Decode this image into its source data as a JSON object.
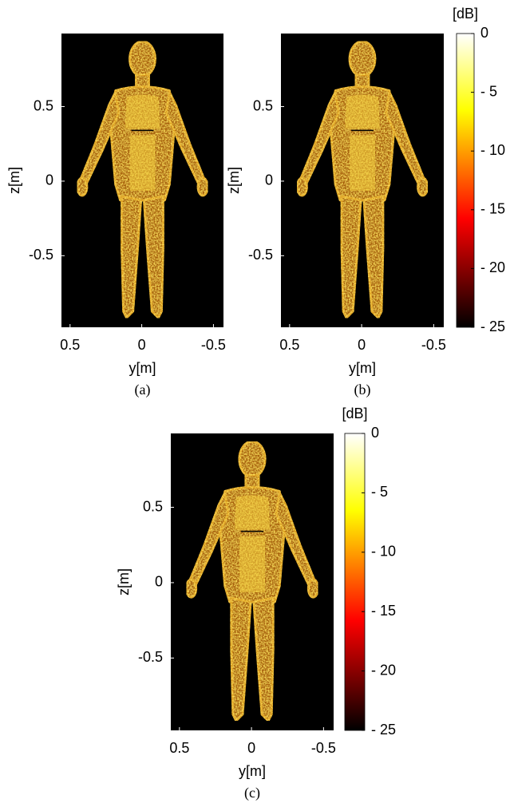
{
  "chart_data": [
    {
      "type": "image",
      "caption": "(a)",
      "xlabel": "y[m]",
      "ylabel": "z[m]",
      "colormap": "hot",
      "xlim": [
        0.56,
        -0.57
      ],
      "xticks": [
        0.5,
        0,
        -0.5
      ],
      "ylim": [
        -0.98,
        0.99
      ],
      "yticks": [
        0.5,
        0,
        -0.5
      ]
    },
    {
      "type": "image",
      "caption": "(b)",
      "xlabel": "y[m]",
      "ylabel": "z[m]",
      "colormap": "hot",
      "xlim": [
        0.56,
        -0.57
      ],
      "xticks": [
        0.5,
        0,
        -0.5
      ],
      "ylim": [
        -0.98,
        0.99
      ],
      "yticks": [
        0.5,
        0,
        -0.5
      ],
      "colorbar": {
        "label": "[dB]",
        "lim": [
          -25,
          0
        ],
        "ticks": [
          0,
          {
            "value": -5,
            "label": "- 5"
          },
          {
            "value": -10,
            "label": "- 10"
          },
          {
            "value": -15,
            "label": "- 15"
          },
          {
            "value": -20,
            "label": "- 20"
          },
          {
            "value": -25,
            "label": "- 25"
          }
        ]
      }
    },
    {
      "type": "image",
      "caption": "(c)",
      "xlabel": "y[m]",
      "ylabel": "z[m]",
      "colormap": "hot",
      "xlim": [
        0.56,
        -0.57
      ],
      "xticks": [
        0.5,
        0,
        -0.5
      ],
      "ylim": [
        -0.98,
        0.99
      ],
      "yticks": [
        0.5,
        0,
        -0.5
      ],
      "colorbar": {
        "label": "[dB]",
        "lim": [
          -25,
          0
        ],
        "ticks": [
          0,
          {
            "value": -5,
            "label": "- 5"
          },
          {
            "value": -10,
            "label": "- 10"
          },
          {
            "value": -15,
            "label": "- 15"
          },
          {
            "value": -20,
            "label": "- 20"
          },
          {
            "value": -25,
            "label": "- 25"
          }
        ]
      }
    }
  ]
}
